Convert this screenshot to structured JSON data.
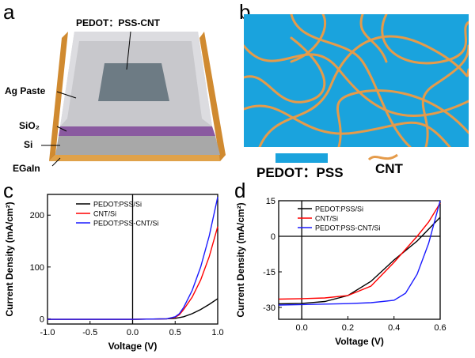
{
  "panels": {
    "a": {
      "letter": "a",
      "top_label": "PEDOT：PSS-CNT",
      "layers": [
        "Ag Paste",
        "SiO₂",
        "Si",
        "EGaIn"
      ]
    },
    "b": {
      "letter": "b",
      "legend_pedot": "PEDOT：PSS",
      "legend_cnt": "CNT"
    },
    "c": {
      "letter": "c"
    },
    "d": {
      "letter": "d"
    }
  },
  "colors": {
    "pedot_blue": "#1aa3dd",
    "cnt_orange": "#e59b4a",
    "silver": "#c8c8cc",
    "sio2": "#8a5aa0",
    "si": "#a8a8a8",
    "egain": "#e0a24a",
    "black": "#000000",
    "red": "#ff0000",
    "blue": "#1a1aff"
  },
  "chart_data": [
    {
      "type": "line",
      "xlabel": "Voltage (V)",
      "ylabel": "Current Density (mA/cm²)",
      "xlim": [
        -1.0,
        1.0
      ],
      "ylim": [
        -10,
        240
      ],
      "xticks": [
        "-1.0",
        "-0.5",
        "0.0",
        "0.5",
        "1.0"
      ],
      "yticks": [
        "0",
        "100",
        "200"
      ],
      "legend_position": "top-left",
      "series": [
        {
          "name": "PEDOT:PSS/Si",
          "color": "#000000",
          "x": [
            -1.0,
            0.0,
            0.4,
            0.5,
            0.6,
            0.7,
            0.8,
            0.9,
            1.0
          ],
          "y": [
            -1,
            -1,
            0,
            1,
            4,
            10,
            18,
            28,
            39
          ]
        },
        {
          "name": "CNT/Si",
          "color": "#ff0000",
          "x": [
            -1.0,
            0.0,
            0.4,
            0.5,
            0.55,
            0.6,
            0.7,
            0.8,
            0.9,
            1.0
          ],
          "y": [
            -1,
            -1,
            0,
            3,
            8,
            18,
            42,
            75,
            120,
            178
          ]
        },
        {
          "name": "PEDOT:PSS-CNT/Si",
          "color": "#1a1aff",
          "x": [
            -1.0,
            0.0,
            0.4,
            0.5,
            0.55,
            0.6,
            0.7,
            0.8,
            0.9,
            1.0
          ],
          "y": [
            -1,
            -1,
            0,
            4,
            10,
            22,
            55,
            100,
            160,
            235
          ]
        }
      ]
    },
    {
      "type": "line",
      "xlabel": "Voltage (V)",
      "ylabel": "Current Density (mA/cm²)",
      "xlim": [
        -0.1,
        0.6
      ],
      "ylim": [
        -35,
        15
      ],
      "xticks": [
        "0.0",
        "0.2",
        "0.4",
        "0.6"
      ],
      "yticks": [
        "-30",
        "-15",
        "0",
        "15"
      ],
      "legend_position": "top-right",
      "series": [
        {
          "name": "PEDOT:PSS/Si",
          "color": "#000000",
          "x": [
            -0.1,
            0.0,
            0.1,
            0.2,
            0.3,
            0.4,
            0.5,
            0.55,
            0.6
          ],
          "y": [
            -28.5,
            -28.3,
            -27.5,
            -25,
            -19,
            -10,
            -2,
            3,
            8
          ]
        },
        {
          "name": "CNT/Si",
          "color": "#ff0000",
          "x": [
            -0.1,
            0.0,
            0.1,
            0.2,
            0.3,
            0.4,
            0.5,
            0.55,
            0.6
          ],
          "y": [
            -26.5,
            -26.3,
            -26,
            -25,
            -21,
            -11,
            0,
            6,
            14
          ]
        },
        {
          "name": "PEDOT:PSS-CNT/Si",
          "color": "#1a1aff",
          "x": [
            -0.1,
            0.0,
            0.1,
            0.2,
            0.3,
            0.4,
            0.45,
            0.5,
            0.55,
            0.6
          ],
          "y": [
            -29,
            -28.8,
            -28.6,
            -28.4,
            -28,
            -27,
            -24,
            -16,
            -3,
            15
          ]
        }
      ]
    }
  ]
}
